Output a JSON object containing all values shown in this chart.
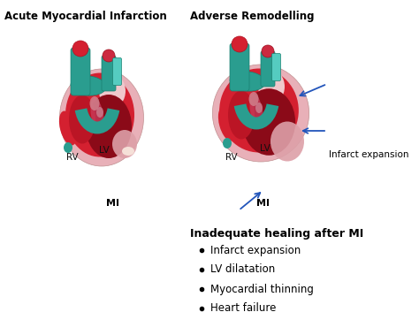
{
  "title_left": "Acute Myocardial Infarction",
  "title_right": "Adverse Remodelling",
  "label_rv": "RV",
  "label_lv": "LV",
  "label_mi_left": "MI",
  "label_mi_right": "MI",
  "label_infarct": "Infarct expansion",
  "heading_bottom": "Inadequate healing after MI",
  "bullets": [
    "Infarct expansion",
    "LV dilatation",
    "Myocardial thinning",
    "Heart failure"
  ],
  "bg_color": "#ffffff",
  "arrow_color": "#2255bb",
  "text_color": "#000000",
  "c_bright_red": "#d42030",
  "c_med_red": "#bb1525",
  "c_dark_red": "#8b0a18",
  "c_pink": "#e8b0b8",
  "c_light_pink": "#f0c8cc",
  "c_mauve": "#c06070",
  "c_teal": "#2a9d8f",
  "c_teal_dark": "#1a7a70",
  "c_teal_light": "#3ab8a8",
  "c_pale_flesh": "#f0d0c8"
}
